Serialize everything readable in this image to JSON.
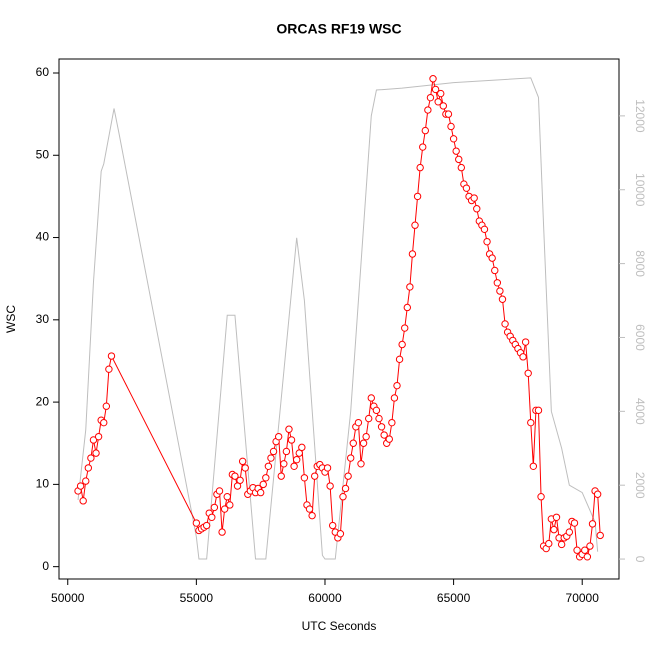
{
  "chart_data": {
    "type": "line",
    "title": "ORCAS RF19 WSC",
    "x_label": "UTC Seconds",
    "y_label": "WSC",
    "xlim": [
      49660,
      71430
    ],
    "ylim": [
      -1.5,
      61.7
    ],
    "y2lim": [
      -540,
      13540
    ],
    "xticks": [
      50000,
      55000,
      60000,
      65000,
      70000
    ],
    "yticks": [
      0,
      10,
      20,
      30,
      40,
      50,
      60
    ],
    "y2ticks": [
      0,
      2000,
      4000,
      6000,
      8000,
      10000,
      12000
    ],
    "y2_color": "#bebebe",
    "series": [
      {
        "color": "#bebebe",
        "axis": "y2",
        "markers": false,
        "x": [
          50400,
          50700,
          51000,
          51300,
          51400,
          51800,
          52000,
          55000,
          55100,
          55400,
          56200,
          56500,
          57300,
          57700,
          58900,
          59200,
          59900,
          60000,
          60400,
          61000,
          61800,
          62000,
          63000,
          65000,
          68000,
          68300,
          68500,
          68800,
          69200,
          69500,
          70000,
          70500,
          70600
        ],
        "values": [
          1600,
          3500,
          7500,
          10500,
          10700,
          12200,
          11500,
          600,
          0,
          0,
          6600,
          6600,
          0,
          0,
          8700,
          7000,
          100,
          0,
          0,
          4000,
          12000,
          12700,
          12750,
          12900,
          13030,
          12500,
          9000,
          4000,
          3000,
          2000,
          1800,
          1000,
          200
        ]
      },
      {
        "color": "#ff0000",
        "markers": true,
        "x": [
          50400,
          50500,
          50600,
          50700,
          50800,
          50900,
          51000,
          51100,
          51200,
          51300,
          51400,
          51500,
          51600,
          51700,
          55000,
          55100,
          55200,
          55300,
          55400,
          55500,
          55600,
          55700,
          55800,
          55900,
          56000,
          56100,
          56200,
          56300,
          56400,
          56500,
          56600,
          56700,
          56800,
          56900,
          57000,
          57100,
          57200,
          57300,
          57400,
          57500,
          57600,
          57700,
          57800,
          57900,
          58000,
          58100,
          58200,
          58300,
          58400,
          58500,
          58600,
          58700,
          58800,
          58900,
          59000,
          59100,
          59200,
          59300,
          59400,
          59500,
          59600,
          59700,
          59800,
          59900,
          60000,
          60100,
          60200,
          60300,
          60400,
          60500,
          60600,
          60700,
          60800,
          60900,
          61000,
          61100,
          61200,
          61300,
          61400,
          61500,
          61600,
          61700,
          61800,
          61900,
          62000,
          62100,
          62200,
          62300,
          62400,
          62500,
          62600,
          62700,
          62800,
          62900,
          63000,
          63100,
          63200,
          63300,
          63400,
          63500,
          63600,
          63700,
          63800,
          63900,
          64000,
          64100,
          64200,
          64300,
          64400,
          64500,
          64600,
          64700,
          64800,
          64900,
          65000,
          65100,
          65200,
          65300,
          65400,
          65500,
          65600,
          65700,
          65800,
          65900,
          66000,
          66100,
          66200,
          66300,
          66400,
          66500,
          66600,
          66700,
          66800,
          66900,
          67000,
          67100,
          67200,
          67300,
          67400,
          67500,
          67600,
          67700,
          67800,
          67900,
          68000,
          68100,
          68200,
          68300,
          68400,
          68500,
          68600,
          68700,
          68800,
          68900,
          69000,
          69100,
          69200,
          69300,
          69400,
          69500,
          69600,
          69700,
          69800,
          69900,
          70000,
          70100,
          70200,
          70300,
          70400,
          70500,
          70600,
          70700
        ],
        "values": [
          9.2,
          9.8,
          8.0,
          10.4,
          12.0,
          13.2,
          15.4,
          13.8,
          15.8,
          17.8,
          17.5,
          19.5,
          24.0,
          25.6,
          5.3,
          4.4,
          4.6,
          4.8,
          5.0,
          6.5,
          6.0,
          7.2,
          8.8,
          9.2,
          4.2,
          7.0,
          8.5,
          7.5,
          11.2,
          11.0,
          9.8,
          10.5,
          12.8,
          12.0,
          8.8,
          9.2,
          9.6,
          9.0,
          9.5,
          9.0,
          10.0,
          10.8,
          12.2,
          13.2,
          14.0,
          15.2,
          15.8,
          11.0,
          12.5,
          14.0,
          16.7,
          15.4,
          12.2,
          13.0,
          13.8,
          14.5,
          10.8,
          7.5,
          7.0,
          6.2,
          11.0,
          12.2,
          12.4,
          12.0,
          11.5,
          12.0,
          9.8,
          5.0,
          4.2,
          3.5,
          4.0,
          8.5,
          9.5,
          11.0,
          13.2,
          15.0,
          17.0,
          17.5,
          12.5,
          15.0,
          15.8,
          18.0,
          20.5,
          19.5,
          19.0,
          18.0,
          17.0,
          16.0,
          15.0,
          15.5,
          17.5,
          20.5,
          22.0,
          25.2,
          27.0,
          29.0,
          31.5,
          34.0,
          38.0,
          41.5,
          45.0,
          48.5,
          51.0,
          53.0,
          55.5,
          57.0,
          59.3,
          58.0,
          56.5,
          57.5,
          56.0,
          55.0,
          55.0,
          53.5,
          52.0,
          50.5,
          49.5,
          48.5,
          46.5,
          46.0,
          45.0,
          44.5,
          44.8,
          43.5,
          42.0,
          41.5,
          41.0,
          39.5,
          38.0,
          37.5,
          36.0,
          34.5,
          33.5,
          32.5,
          29.5,
          28.5,
          28.0,
          27.5,
          27.0,
          26.5,
          26.0,
          25.5,
          27.3,
          23.5,
          17.5,
          12.2,
          19.0,
          19.0,
          8.5,
          2.5,
          2.2,
          2.8,
          5.8,
          4.5,
          6.0,
          3.5,
          2.7,
          3.5,
          3.7,
          4.2,
          5.5,
          5.3,
          2.0,
          1.2,
          1.5,
          2.0,
          1.2,
          2.5,
          5.2,
          9.2,
          8.8,
          3.8
        ]
      }
    ]
  }
}
